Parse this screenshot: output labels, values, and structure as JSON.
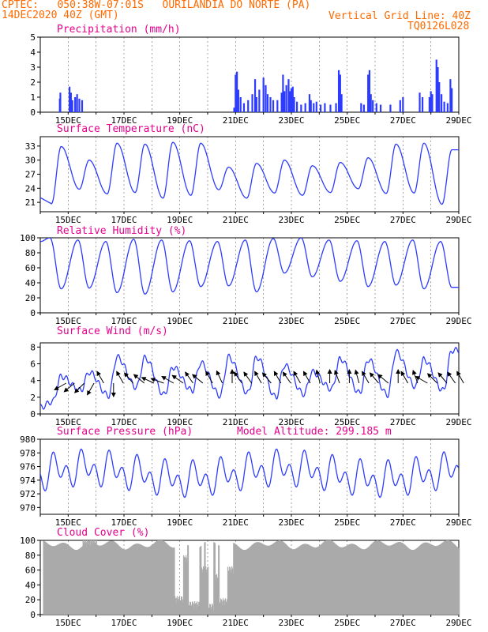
{
  "header": {
    "line1": "CPTEC:   050:38W-07:01S   OURILANDIA DO NORTE (PA)",
    "line2_left": "14DEC2020 40Z (GMT)",
    "line2_right": "Vertical Grid Line: 40Z",
    "line3_right": "TQ0126L028",
    "color": "#ff6a00"
  },
  "colors": {
    "title": "#e6008c",
    "line": "#2d3cff",
    "cloud": "#aaaaaa",
    "arrow": "#000000"
  },
  "x_axis": {
    "tick_labels": [
      "15DEC",
      "17DEC",
      "19DEC",
      "21DEC",
      "23DEC",
      "25DEC",
      "27DEC",
      "29DEC"
    ],
    "range_days": [
      14,
      29
    ]
  },
  "chart_data": [
    {
      "type": "bar",
      "title": "Precipitation (mm/h)",
      "ylim": [
        0,
        5
      ],
      "yticks": [
        0,
        1,
        2,
        3,
        4,
        5
      ],
      "bars": [
        [
          14.7,
          0.9
        ],
        [
          14.72,
          1.3
        ],
        [
          15.05,
          1.7
        ],
        [
          15.1,
          1.3
        ],
        [
          15.15,
          0.8
        ],
        [
          15.25,
          1.0
        ],
        [
          15.32,
          1.2
        ],
        [
          15.4,
          0.9
        ],
        [
          15.5,
          0.8
        ],
        [
          20.95,
          0.3
        ],
        [
          21.0,
          2.5
        ],
        [
          21.05,
          2.7
        ],
        [
          21.1,
          1.5
        ],
        [
          21.18,
          1.0
        ],
        [
          21.3,
          0.6
        ],
        [
          21.45,
          0.8
        ],
        [
          21.6,
          1.2
        ],
        [
          21.7,
          2.2
        ],
        [
          21.75,
          1.0
        ],
        [
          21.85,
          1.5
        ],
        [
          22.0,
          2.3
        ],
        [
          22.08,
          1.8
        ],
        [
          22.15,
          1.2
        ],
        [
          22.25,
          1.0
        ],
        [
          22.35,
          0.8
        ],
        [
          22.5,
          0.8
        ],
        [
          22.65,
          1.3
        ],
        [
          22.7,
          2.5
        ],
        [
          22.75,
          1.4
        ],
        [
          22.82,
          1.8
        ],
        [
          22.9,
          2.2
        ],
        [
          22.95,
          1.4
        ],
        [
          23.0,
          1.6
        ],
        [
          23.05,
          1.7
        ],
        [
          23.1,
          1.0
        ],
        [
          23.2,
          0.7
        ],
        [
          23.35,
          0.5
        ],
        [
          23.5,
          0.6
        ],
        [
          23.65,
          1.2
        ],
        [
          23.7,
          0.8
        ],
        [
          23.8,
          0.6
        ],
        [
          23.9,
          0.7
        ],
        [
          24.05,
          0.5
        ],
        [
          24.2,
          0.6
        ],
        [
          24.4,
          0.5
        ],
        [
          24.6,
          0.6
        ],
        [
          24.7,
          2.8
        ],
        [
          24.75,
          2.5
        ],
        [
          24.8,
          1.2
        ],
        [
          25.5,
          0.6
        ],
        [
          25.6,
          0.5
        ],
        [
          25.75,
          2.5
        ],
        [
          25.8,
          2.8
        ],
        [
          25.85,
          1.2
        ],
        [
          25.92,
          0.8
        ],
        [
          26.05,
          0.6
        ],
        [
          26.2,
          0.5
        ],
        [
          26.55,
          0.5
        ],
        [
          26.9,
          0.8
        ],
        [
          27.0,
          1.0
        ],
        [
          27.6,
          1.3
        ],
        [
          27.7,
          1.0
        ],
        [
          27.95,
          1.0
        ],
        [
          28.0,
          1.4
        ],
        [
          28.05,
          1.2
        ],
        [
          28.2,
          3.5
        ],
        [
          28.25,
          3.0
        ],
        [
          28.3,
          2.0
        ],
        [
          28.38,
          1.2
        ],
        [
          28.48,
          0.7
        ],
        [
          28.6,
          0.6
        ],
        [
          28.7,
          2.2
        ],
        [
          28.75,
          1.6
        ]
      ]
    },
    {
      "type": "line",
      "title": "Surface Temperature (nC)",
      "ylim": [
        19,
        35
      ],
      "yticks": [
        21,
        24,
        27,
        30,
        33
      ],
      "base": 22,
      "mins": [
        20.7,
        23.8,
        22.8,
        23.1,
        21.9,
        22.5,
        23.7,
        21.9,
        23.0,
        22.5,
        23.1,
        23.9,
        22.9,
        23.0,
        20.6
      ],
      "maxs": [
        32.9,
        30.0,
        33.6,
        33.4,
        33.8,
        33.6,
        28.5,
        29.3,
        30.0,
        28.8,
        29.5,
        30.5,
        33.4,
        33.6,
        32.2
      ]
    },
    {
      "type": "line",
      "title": "Relative Humidity (%)",
      "ylim": [
        0,
        100
      ],
      "yticks": [
        0,
        20,
        40,
        60,
        80,
        100
      ],
      "base": 95,
      "peaks": [
        100,
        97,
        95,
        98,
        97,
        96,
        95,
        97,
        99,
        100,
        97,
        96,
        95,
        97,
        95
      ],
      "troughs": [
        32,
        33,
        27,
        25,
        28,
        35,
        36,
        28,
        53,
        48,
        42,
        35,
        37,
        32,
        34
      ]
    },
    {
      "type": "line",
      "title": "Surface Wind (m/s)",
      "ylim": [
        0,
        8.5
      ],
      "yticks": [
        0,
        2,
        4,
        6,
        8
      ],
      "base": 0.8,
      "peaks": [
        4.5,
        5.0,
        6.8,
        6.7,
        5.6,
        6.1,
        6.8,
        6.8,
        5.8,
        5.0,
        6.6,
        6.5,
        7.4,
        6.5,
        7.6
      ],
      "troughs": [
        1.5,
        2.8,
        2.2,
        3.2,
        2.3,
        2.8,
        2.2,
        2.5,
        2.0,
        2.4,
        3.0,
        2.5,
        2.3,
        3.3,
        2.8
      ],
      "vectors": [
        [
          14.7,
          30
        ],
        [
          15.0,
          40
        ],
        [
          15.35,
          45
        ],
        [
          15.7,
          60
        ],
        [
          16.05,
          -60
        ],
        [
          16.4,
          90
        ],
        [
          16.75,
          -60
        ],
        [
          17.1,
          -50
        ],
        [
          17.5,
          -40
        ],
        [
          17.85,
          -25
        ],
        [
          18.2,
          -20
        ],
        [
          18.55,
          -30
        ],
        [
          18.9,
          -35
        ],
        [
          19.25,
          -55
        ],
        [
          19.6,
          -40
        ],
        [
          19.95,
          -60
        ],
        [
          20.3,
          -65
        ],
        [
          20.65,
          -90
        ],
        [
          21.0,
          -55
        ],
        [
          21.35,
          -55
        ],
        [
          21.7,
          -60
        ],
        [
          22.05,
          -50
        ],
        [
          22.4,
          -60
        ],
        [
          22.75,
          -55
        ],
        [
          23.1,
          -60
        ],
        [
          23.45,
          -60
        ],
        [
          23.8,
          -75
        ],
        [
          24.15,
          -90
        ],
        [
          24.5,
          -70
        ],
        [
          24.85,
          -90
        ],
        [
          25.2,
          -75
        ],
        [
          25.55,
          -60
        ],
        [
          25.9,
          -50
        ],
        [
          26.25,
          -40
        ],
        [
          26.6,
          -90
        ],
        [
          26.95,
          -60
        ],
        [
          27.3,
          -70
        ],
        [
          27.65,
          -30
        ],
        [
          28.0,
          -45
        ],
        [
          28.35,
          -50
        ],
        [
          28.65,
          -55
        ],
        [
          28.95,
          -60
        ]
      ]
    },
    {
      "type": "line",
      "title": "Surface Pressure (hPa)",
      "annotation": "Model Altitude: 299.185 m",
      "ylim": [
        969,
        980
      ],
      "yticks": [
        970,
        972,
        974,
        976,
        978,
        980
      ],
      "amp12": 1.7,
      "amp24": 1.4,
      "mean": 974.9
    },
    {
      "type": "area",
      "title": "Cloud Cover (%)",
      "ylim": [
        0,
        100
      ],
      "yticks": [
        0,
        20,
        40,
        60,
        80,
        100
      ],
      "dips": [
        [
          15.5,
          16.0,
          93
        ],
        [
          18.8,
          19.1,
          15
        ],
        [
          19.1,
          19.25,
          70
        ],
        [
          19.3,
          19.7,
          8
        ],
        [
          19.75,
          19.85,
          55
        ],
        [
          19.9,
          20.0,
          55
        ],
        [
          20.0,
          20.2,
          5
        ],
        [
          20.25,
          20.35,
          45
        ],
        [
          20.4,
          20.7,
          12
        ],
        [
          20.7,
          20.9,
          55
        ]
      ]
    }
  ]
}
